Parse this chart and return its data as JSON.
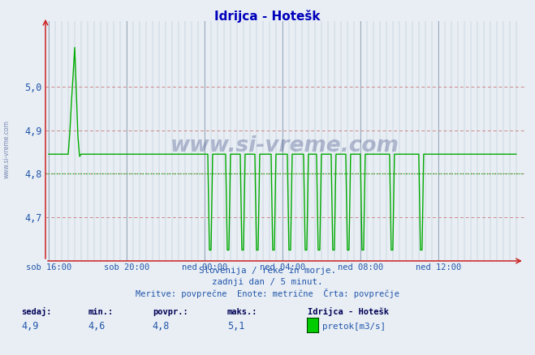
{
  "title": "Idrijca - Hotešk",
  "bg_color": "#e8eef4",
  "plot_bg_color": "#e8eef4",
  "line_color": "#00aa00",
  "avg_line_color": "#00aa00",
  "grid_color_red": "#cc8888",
  "grid_color_blue": "#9aaabb",
  "ylabel_color": "#2255aa",
  "xlabel_color": "#2255aa",
  "title_color": "#0000bb",
  "ymin": 4.6,
  "ymax": 5.15,
  "yticks": [
    4.7,
    4.8,
    4.9,
    5.0
  ],
  "avg_value": 4.8,
  "footer_line1": "Slovenija / reke in morje.",
  "footer_line2": "zadnji dan / 5 minut.",
  "footer_line3": "Meritve: povprečne  Enote: metrične  Črta: povprečje",
  "legend_title": "Idrijca - Hotešk",
  "legend_label": "pretok[m3/s]",
  "stat_sedaj_label": "sedaj:",
  "stat_min_label": "min.:",
  "stat_povpr_label": "povpr.:",
  "stat_maks_label": "maks.:",
  "stat_sedaj": "4,9",
  "stat_min": "4,6",
  "stat_povpr": "4,8",
  "stat_maks": "5,1",
  "xtick_labels": [
    "sob 16:00",
    "sob 20:00",
    "ned 00:00",
    "ned 04:00",
    "ned 08:00",
    "ned 12:00"
  ],
  "xtick_positions": [
    0,
    48,
    96,
    144,
    192,
    240
  ],
  "total_points": 289,
  "flat_level": 4.845,
  "spike_peak": 5.09,
  "drop_bottom": 4.625,
  "watermark": "www.si-vreme.com"
}
